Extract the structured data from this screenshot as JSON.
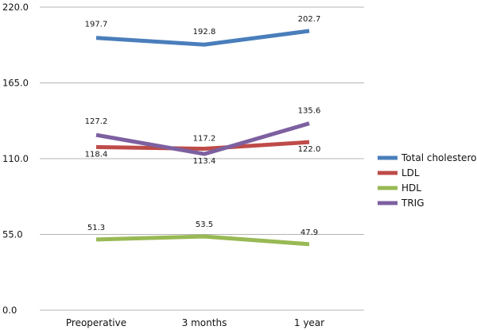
{
  "chart_data": {
    "type": "line",
    "title": "",
    "xlabel": "",
    "ylabel": "",
    "categories": [
      "Preoperative",
      "3 months",
      "1 year"
    ],
    "ylim": [
      0,
      220
    ],
    "yticks": [
      "0.0",
      "55.0",
      "110.0",
      "165.0",
      "220.0"
    ],
    "grid": "horizontal",
    "legend_position": "right",
    "series": [
      {
        "name": "Total cholesterol",
        "color": "#4a7ebb",
        "values": [
          197.7,
          192.8,
          202.7
        ],
        "labels": [
          "197.7",
          "192.8",
          "202.7"
        ]
      },
      {
        "name": "LDL",
        "color": "#be4b48",
        "values": [
          118.4,
          117.2,
          122.0
        ],
        "labels": [
          "118.4",
          "117.2",
          "122.0"
        ]
      },
      {
        "name": "HDL",
        "color": "#98b954",
        "values": [
          51.3,
          53.5,
          47.9
        ],
        "labels": [
          "51.3",
          "53.5",
          "47.9"
        ]
      },
      {
        "name": "TRIG",
        "color": "#7d60a0",
        "values": [
          127.2,
          113.4,
          135.6
        ],
        "labels": [
          "127.2",
          "113.4",
          "135.6"
        ]
      }
    ]
  }
}
